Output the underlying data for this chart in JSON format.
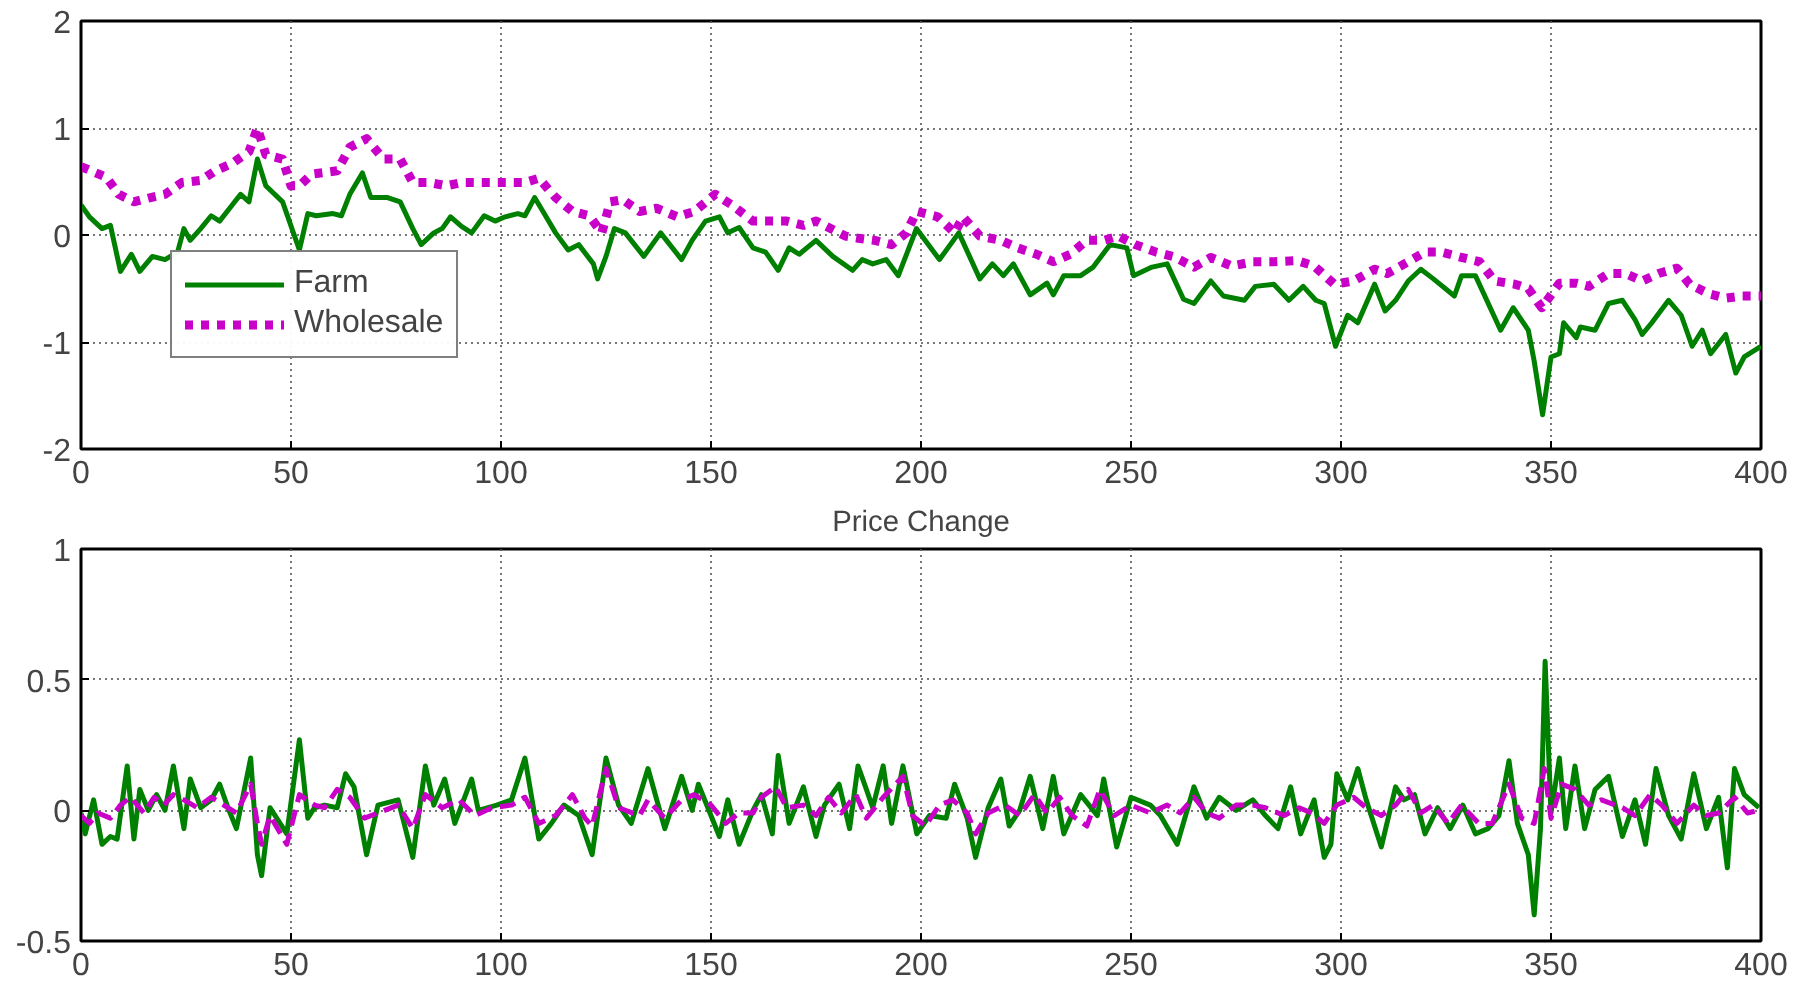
{
  "chart_data": [
    {
      "type": "line",
      "xlim": [
        0,
        400
      ],
      "ylim": [
        -2,
        2
      ],
      "xticks": [
        0,
        50,
        100,
        150,
        200,
        250,
        300,
        350,
        400
      ],
      "yticks": [
        -2,
        -1,
        0,
        1,
        2
      ],
      "grid": true,
      "legend": "bottom left",
      "series": [
        {
          "name": "Farm",
          "color": "#008000",
          "line_style": "solid",
          "x": [
            0,
            2,
            5,
            7,
            9.4,
            12,
            14,
            17,
            20,
            23,
            24.5,
            26,
            28.5,
            31,
            33,
            36,
            38,
            40,
            42,
            44,
            48,
            52,
            54,
            56,
            60,
            62,
            64,
            67,
            69,
            73,
            76,
            79,
            81,
            84,
            86,
            88,
            90.6,
            93,
            96,
            98.6,
            101,
            104,
            105.7,
            108,
            110,
            113,
            116,
            118.5,
            122,
            123,
            125,
            127,
            129.6,
            134,
            138,
            143,
            145.5,
            148.7,
            152,
            154,
            156.7,
            160,
            163,
            166,
            168.6,
            171,
            175,
            179,
            183.7,
            186,
            188.5,
            191.7,
            194.6,
            198.9,
            204.4,
            209,
            214,
            217,
            219.6,
            222,
            226,
            230,
            231.5,
            234,
            238,
            241,
            245,
            249,
            250.6,
            255,
            258.6,
            262.5,
            265,
            269,
            272,
            277,
            279.6,
            284,
            287.6,
            291,
            294,
            296,
            298.7,
            301.6,
            304,
            308,
            310.5,
            313,
            316,
            319,
            322,
            327,
            328.7,
            332,
            338,
            341,
            344.6,
            346,
            348,
            350,
            352,
            353,
            356,
            357,
            360.5,
            363.7,
            367,
            370,
            371.7,
            374,
            378,
            381,
            383.6,
            386,
            388,
            391.6,
            394,
            396,
            400
          ],
          "values": [
            0.28,
            0.17,
            0.06,
            0.09,
            -0.34,
            -0.18,
            -0.34,
            -0.2,
            -0.23,
            -0.16,
            0.06,
            -0.05,
            0.06,
            0.18,
            0.13,
            0.28,
            0.38,
            0.31,
            0.71,
            0.46,
            0.31,
            -0.14,
            0.2,
            0.18,
            0.2,
            0.18,
            0.38,
            0.58,
            0.35,
            0.35,
            0.31,
            0.06,
            -0.09,
            0.02,
            0.06,
            0.17,
            0.08,
            0.02,
            0.18,
            0.13,
            0.17,
            0.2,
            0.18,
            0.35,
            0.22,
            0.02,
            -0.14,
            -0.09,
            -0.27,
            -0.41,
            -0.2,
            0.06,
            0.02,
            -0.2,
            0.02,
            -0.23,
            -0.05,
            0.13,
            0.17,
            0.02,
            0.07,
            -0.12,
            -0.16,
            -0.33,
            -0.12,
            -0.18,
            -0.05,
            -0.2,
            -0.33,
            -0.23,
            -0.27,
            -0.23,
            -0.38,
            0.06,
            -0.23,
            0.02,
            -0.41,
            -0.27,
            -0.38,
            -0.27,
            -0.56,
            -0.45,
            -0.56,
            -0.38,
            -0.38,
            -0.3,
            -0.09,
            -0.12,
            -0.38,
            -0.3,
            -0.27,
            -0.6,
            -0.64,
            -0.43,
            -0.57,
            -0.61,
            -0.48,
            -0.46,
            -0.61,
            -0.48,
            -0.61,
            -0.64,
            -1.04,
            -0.75,
            -0.82,
            -0.46,
            -0.71,
            -0.61,
            -0.43,
            -0.32,
            -0.41,
            -0.57,
            -0.38,
            -0.38,
            -0.89,
            -0.68,
            -0.89,
            -1.18,
            -1.68,
            -1.14,
            -1.11,
            -0.82,
            -0.96,
            -0.86,
            -0.89,
            -0.64,
            -0.61,
            -0.79,
            -0.93,
            -0.82,
            -0.61,
            -0.75,
            -1.04,
            -0.89,
            -1.11,
            -0.93,
            -1.29,
            -1.14,
            -1.04
          ]
        },
        {
          "name": "Wholesale",
          "color": "#c800c8",
          "line_style": "dotted",
          "x": [
            0,
            6,
            9,
            12.6,
            16.6,
            20,
            24,
            28.5,
            32,
            36,
            40,
            42,
            44,
            48,
            50,
            52,
            55,
            61,
            64,
            68,
            72,
            76,
            79,
            83,
            87,
            90.6,
            94.6,
            99,
            105.7,
            109,
            113,
            117,
            121,
            124,
            126,
            129,
            133,
            137,
            142,
            146,
            151,
            155,
            160,
            165,
            168,
            172,
            175,
            177,
            182,
            185,
            189,
            193,
            196.5,
            199,
            204,
            208,
            210,
            214,
            219,
            223,
            227.5,
            231.5,
            235.5,
            239.5,
            243.5,
            247,
            251,
            256,
            260,
            265,
            269,
            274,
            279,
            284,
            289.6,
            293.6,
            298.4,
            303,
            308,
            311,
            316,
            320,
            324,
            328.7,
            333,
            336.6,
            341.4,
            344.6,
            347.8,
            352,
            356,
            359,
            363.7,
            367.7,
            371.7,
            375.6,
            380,
            383,
            387.6,
            391.6,
            395.5,
            400
          ],
          "values": [
            0.64,
            0.54,
            0.38,
            0.31,
            0.35,
            0.38,
            0.49,
            0.51,
            0.6,
            0.67,
            0.78,
            1.0,
            0.75,
            0.71,
            0.46,
            0.46,
            0.57,
            0.6,
            0.82,
            0.9,
            0.71,
            0.71,
            0.49,
            0.49,
            0.46,
            0.49,
            0.49,
            0.49,
            0.49,
            0.53,
            0.35,
            0.22,
            0.18,
            0.02,
            0.31,
            0.33,
            0.22,
            0.25,
            0.17,
            0.22,
            0.38,
            0.28,
            0.13,
            0.13,
            0.13,
            0.09,
            0.13,
            0.09,
            -0.01,
            -0.03,
            -0.05,
            -0.09,
            0.02,
            0.22,
            0.17,
            0.02,
            0.17,
            -0.01,
            -0.05,
            -0.12,
            -0.18,
            -0.25,
            -0.18,
            -0.05,
            -0.05,
            -0.01,
            -0.09,
            -0.16,
            -0.2,
            -0.3,
            -0.21,
            -0.29,
            -0.25,
            -0.25,
            -0.24,
            -0.29,
            -0.46,
            -0.43,
            -0.32,
            -0.36,
            -0.25,
            -0.16,
            -0.16,
            -0.21,
            -0.25,
            -0.43,
            -0.46,
            -0.5,
            -0.68,
            -0.45,
            -0.45,
            -0.48,
            -0.36,
            -0.36,
            -0.43,
            -0.36,
            -0.31,
            -0.46,
            -0.55,
            -0.59,
            -0.57,
            -0.57
          ]
        }
      ]
    },
    {
      "type": "line",
      "title": "Price Change",
      "xlim": [
        0,
        400
      ],
      "ylim": [
        -0.5,
        1
      ],
      "xticks": [
        0,
        50,
        100,
        150,
        200,
        250,
        300,
        350,
        400
      ],
      "yticks": [
        -0.5,
        0,
        0.5,
        1
      ],
      "grid": true,
      "series": [
        {
          "color": "#008000",
          "line_style": "solid",
          "x": [
            0,
            1,
            3,
            5,
            7,
            8.6,
            11,
            12.6,
            14,
            16,
            18,
            20,
            22,
            24.5,
            26,
            28.5,
            31,
            33,
            35,
            37,
            40.4,
            42,
            43,
            45,
            49,
            52,
            54,
            55.6,
            58,
            61,
            63,
            65,
            68,
            70.7,
            75.5,
            79,
            82,
            84,
            86.6,
            89,
            93,
            94.6,
            99,
            102.5,
            105.7,
            109,
            112,
            115,
            118.5,
            121.7,
            125,
            128,
            131,
            135,
            139,
            143,
            145.5,
            147,
            152,
            154,
            156.7,
            160,
            162,
            164.6,
            166,
            168.6,
            172,
            175,
            177,
            180.5,
            183,
            185,
            187,
            188.5,
            191,
            193,
            195.7,
            199,
            202,
            206,
            208,
            211,
            213,
            216,
            219,
            221,
            223.5,
            226,
            229,
            231.5,
            234,
            238,
            242,
            243.5,
            246.6,
            250,
            254.6,
            257,
            261,
            265,
            268,
            271,
            275,
            279,
            282,
            285,
            288,
            290.4,
            293.6,
            296,
            297.6,
            299,
            301.6,
            304,
            306,
            309.6,
            313,
            315,
            317.5,
            320,
            323,
            326,
            329,
            332,
            335,
            337.6,
            340,
            342,
            344.6,
            346,
            347.5,
            348.6,
            350,
            352,
            353.5,
            355.7,
            358,
            360.5,
            363.7,
            367,
            370,
            372.5,
            375,
            378,
            381,
            384,
            387,
            389.9,
            392,
            393.7,
            396,
            399.5
          ],
          "values": [
            -0.01,
            -0.09,
            0.04,
            -0.13,
            -0.1,
            -0.11,
            0.17,
            -0.11,
            0.08,
            0,
            0.06,
            0,
            0.17,
            -0.07,
            0.12,
            0.01,
            0.04,
            0.1,
            0.01,
            -0.07,
            0.2,
            -0.17,
            -0.25,
            0.01,
            -0.09,
            0.27,
            -0.03,
            0.01,
            0.02,
            0.01,
            0.14,
            0.09,
            -0.17,
            0.02,
            0.04,
            -0.18,
            0.17,
            0.02,
            0.12,
            -0.05,
            0.12,
            0,
            0.02,
            0.04,
            0.2,
            -0.11,
            -0.05,
            0.02,
            -0.02,
            -0.17,
            0.2,
            0.02,
            -0.05,
            0.16,
            -0.07,
            0.13,
            0,
            0.1,
            -0.1,
            0.04,
            -0.13,
            0,
            0.06,
            -0.09,
            0.21,
            -0.05,
            0.09,
            -0.1,
            0.02,
            0.1,
            -0.07,
            0.17,
            0.08,
            0.01,
            0.17,
            -0.05,
            0.17,
            -0.09,
            -0.02,
            -0.03,
            0.1,
            -0.03,
            -0.18,
            0.01,
            0.12,
            -0.06,
            0,
            0.13,
            -0.07,
            0.13,
            -0.09,
            0.06,
            -0.02,
            0.12,
            -0.14,
            0.05,
            0.02,
            -0.02,
            -0.13,
            0.09,
            -0.03,
            0.05,
            0,
            0.04,
            -0.02,
            -0.07,
            0.09,
            -0.09,
            0.04,
            -0.18,
            -0.13,
            0.14,
            0.04,
            0.16,
            0.04,
            -0.14,
            0.09,
            0.04,
            0.06,
            -0.09,
            0.01,
            -0.07,
            0.02,
            -0.09,
            -0.07,
            -0.02,
            0.19,
            -0.05,
            -0.17,
            -0.4,
            -0.07,
            0.57,
            -0.01,
            0.2,
            -0.07,
            0.17,
            -0.07,
            0.08,
            0.13,
            -0.1,
            0.04,
            -0.13,
            0.16,
            -0.02,
            -0.11,
            0.14,
            -0.07,
            0.05,
            -0.22,
            0.16,
            0.06,
            0.01
          ]
        },
        {
          "color": "#c800c8",
          "line_style": "dashed",
          "x": [
            0,
            2,
            4,
            7,
            9.4,
            11.8,
            15,
            17.4,
            19.7,
            22,
            24.5,
            27.7,
            31,
            34,
            37,
            40.4,
            42,
            43,
            45,
            49,
            52,
            55.6,
            58,
            61,
            64,
            67.5,
            70.7,
            75.5,
            79,
            82,
            86,
            90,
            93.8,
            97.8,
            102.5,
            105.7,
            109,
            113,
            117,
            120,
            121.7,
            125,
            128,
            133,
            135,
            139,
            143,
            146,
            150,
            153.5,
            156.7,
            160,
            162,
            165.4,
            168,
            172,
            175,
            178,
            181,
            184.5,
            187,
            191,
            195.7,
            198,
            201,
            204.4,
            207.6,
            211,
            213,
            216,
            220,
            223.5,
            227,
            230,
            233,
            236,
            239.5,
            242.6,
            246,
            250,
            254.6,
            258.6,
            261.7,
            265,
            268,
            271,
            275,
            279,
            282,
            286.5,
            290,
            293,
            296,
            299,
            303,
            306,
            309.6,
            313,
            316,
            319,
            322,
            325.5,
            328.7,
            332.8,
            336,
            340,
            343,
            346,
            348.4,
            350,
            352.5,
            355.7,
            359,
            362,
            367,
            370,
            373.6,
            376.4,
            380,
            384,
            387,
            390,
            393.7,
            396.8,
            399.5
          ],
          "values": [
            -0.02,
            -0.05,
            -0.01,
            -0.03,
            0.02,
            0.05,
            -0.01,
            0.05,
            0.02,
            0.06,
            0.04,
            0.01,
            0.05,
            0.02,
            -0.01,
            0.1,
            -0.05,
            -0.13,
            -0.02,
            -0.13,
            0.06,
            0.02,
            0.01,
            0.08,
            0.05,
            -0.03,
            -0.01,
            0.02,
            -0.07,
            0.06,
            0.01,
            0.04,
            -0.02,
            0.01,
            0.02,
            0.05,
            -0.05,
            -0.02,
            0.06,
            -0.03,
            -0.06,
            0.16,
            0.01,
            -0.02,
            0.04,
            -0.03,
            0.04,
            0.06,
            0.02,
            -0.05,
            -0.01,
            -0.01,
            0.05,
            0.09,
            0.01,
            0.02,
            -0.02,
            0.05,
            -0.01,
            0.06,
            -0.03,
            0.05,
            0.13,
            -0.02,
            -0.06,
            0.02,
            0.04,
            -0.01,
            -0.09,
            -0.01,
            0.02,
            -0.02,
            0.06,
            -0.01,
            0.05,
            -0.02,
            -0.06,
            0.08,
            -0.02,
            0.02,
            -0.01,
            0.02,
            -0.01,
            0.05,
            -0.01,
            -0.03,
            0.02,
            0.02,
            0.01,
            -0.02,
            0.01,
            -0.01,
            -0.05,
            0.02,
            0.05,
            0.01,
            -0.02,
            0.02,
            0.08,
            -0.01,
            0.02,
            -0.05,
            0.02,
            -0.05,
            -0.05,
            0.1,
            -0.03,
            -0.05,
            0.16,
            -0.03,
            0.1,
            0.08,
            0.02,
            0.04,
            0.01,
            -0.02,
            0.06,
            0.02,
            -0.05,
            0.02,
            -0.02,
            -0.01,
            0.05,
            -0.01,
            0
          ]
        }
      ]
    }
  ]
}
